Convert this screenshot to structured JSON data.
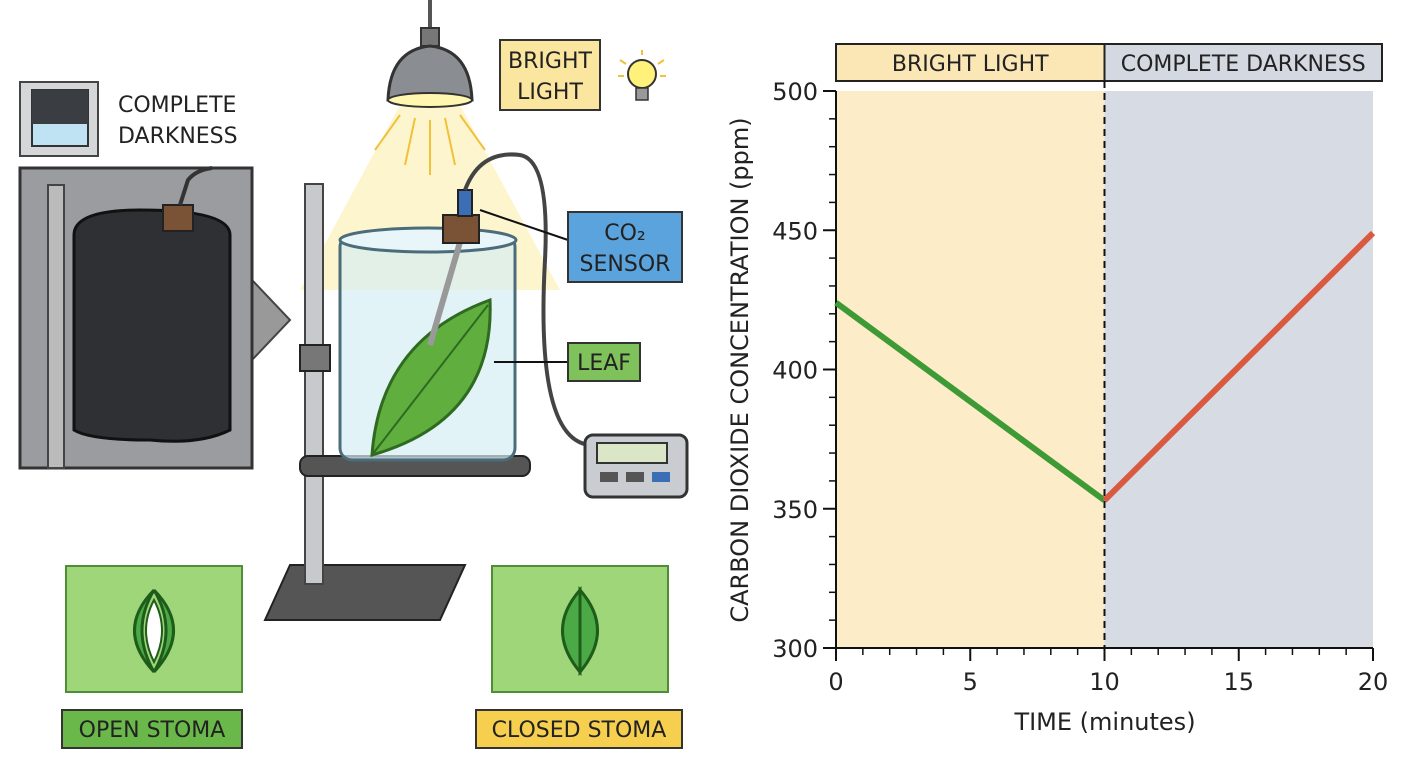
{
  "illustration": {
    "bright_light": [
      "BRIGHT",
      "LIGHT"
    ],
    "complete_darkness": [
      "COMPLETE",
      "DARKNESS"
    ],
    "sensor": [
      "CO₂",
      "SENSOR"
    ],
    "leaf": "LEAF",
    "open_stoma": "OPEN STOMA",
    "closed_stoma": "CLOSED STOMA"
  },
  "chart_data": {
    "type": "line",
    "x_label": "TIME (minutes)",
    "y_label": "CARBON DIOXIDE CONCENTRATION (ppm)",
    "x": [
      0,
      10,
      20
    ],
    "series": [
      {
        "name": "Bright light",
        "color": "#3e9a34",
        "values": [
          424,
          353,
          null
        ]
      },
      {
        "name": "Complete darkness",
        "color": "#d95a40",
        "values": [
          null,
          353,
          449
        ]
      }
    ],
    "regions": [
      {
        "label": "BRIGHT LIGHT",
        "from": 0,
        "to": 10,
        "color": "#fcecc8",
        "header_color": "#fbe6b5"
      },
      {
        "label": "COMPLETE DARKNESS",
        "from": 10,
        "to": 20,
        "color": "#d7dbe3",
        "header_color": "#d3d8e1"
      }
    ],
    "xlim": [
      0,
      20
    ],
    "ylim": [
      300,
      500
    ],
    "xticks": [
      0,
      5,
      10,
      15,
      20
    ],
    "yticks": [
      300,
      350,
      400,
      450,
      500
    ],
    "x_minor_step": 1,
    "y_minor_step": 10
  }
}
